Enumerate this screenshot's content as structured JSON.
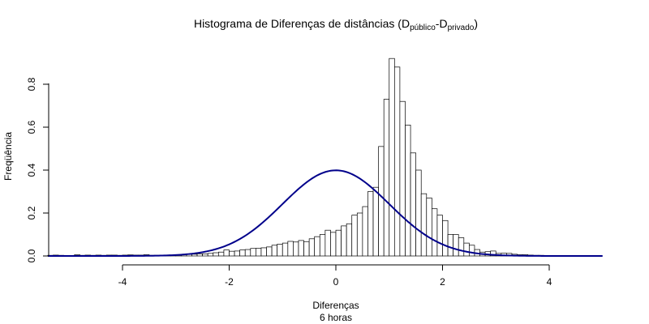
{
  "chart_data": {
    "type": "bar",
    "title": {
      "main": "Histograma de Diferenças de distâncias (D",
      "sub1": "público",
      "mid": "-D",
      "sub2": "privado",
      "end": ")"
    },
    "xlabel": "Diferenças",
    "xlabel_sub": "6 horas",
    "ylabel": "Freqüência",
    "xlim": [
      -5.4,
      5.0
    ],
    "ylim": [
      0,
      0.93
    ],
    "xticks": [
      "-4",
      "-2",
      "0",
      "2",
      "4"
    ],
    "yticks": [
      "0.0",
      "0.2",
      "0.4",
      "0.6",
      "0.8"
    ],
    "bin_start": -5.4,
    "bin_width": 0.1,
    "histogram_values": [
      0.003,
      0.004,
      0.003,
      0,
      0.002,
      0.006,
      0.003,
      0.004,
      0.003,
      0.004,
      0.003,
      0.004,
      0.004,
      0.003,
      0.004,
      0.005,
      0.004,
      0.004,
      0.006,
      0.003,
      0.003,
      0.004,
      0.004,
      0.003,
      0.005,
      0.006,
      0.007,
      0.008,
      0.01,
      0.01,
      0.012,
      0.015,
      0.018,
      0.028,
      0.022,
      0.023,
      0.028,
      0.03,
      0.035,
      0.036,
      0.038,
      0.042,
      0.05,
      0.055,
      0.06,
      0.068,
      0.065,
      0.072,
      0.067,
      0.08,
      0.09,
      0.1,
      0.12,
      0.11,
      0.12,
      0.14,
      0.15,
      0.19,
      0.2,
      0.23,
      0.3,
      0.32,
      0.51,
      0.73,
      0.92,
      0.88,
      0.72,
      0.61,
      0.48,
      0.4,
      0.29,
      0.27,
      0.22,
      0.19,
      0.165,
      0.1,
      0.1,
      0.085,
      0.06,
      0.05,
      0.03,
      0.018,
      0.02,
      0.023,
      0.012,
      0.013,
      0.012,
      0.008,
      0.006,
      0.006,
      0.004,
      0.003,
      0.003,
      0.002,
      0.001,
      0.001
    ],
    "curve": {
      "type": "normal-density",
      "mean": 0,
      "sd": 1,
      "color": "#00008B"
    }
  }
}
